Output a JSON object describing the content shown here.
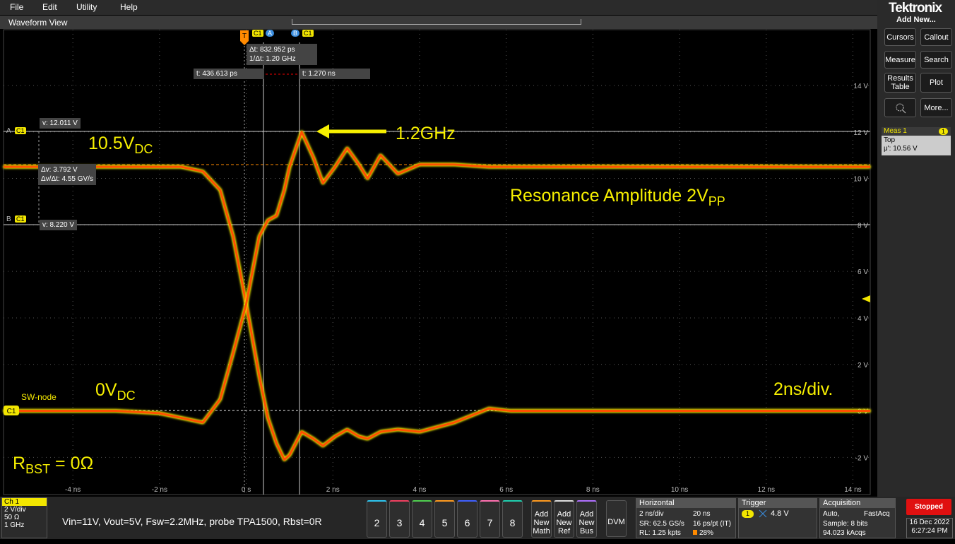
{
  "menu": [
    "File",
    "Edit",
    "Utility",
    "Help"
  ],
  "brand": "Tektronix",
  "view_title": "Waveform View",
  "right_panel": {
    "title": "Add New...",
    "buttons": [
      "Cursors",
      "Callout",
      "Measure",
      "Search",
      "Results Table",
      "Plot",
      "More..."
    ],
    "meas": {
      "name": "Meas 1",
      "badge": "1",
      "label": "Top",
      "value": "μ': 10.56 V"
    }
  },
  "cursors": {
    "channel": "C1",
    "a": "A",
    "b": "B",
    "trigger": "T",
    "a_v": "v: 12.011 V",
    "b_v": "v: 8.220 V",
    "dv": "Δv: 3.792 V",
    "dvdt": "Δv/Δt: 4.55 GV/s",
    "dt": "Δt: 832.952 ps",
    "inv_dt": "1/Δt: 1.20 GHz",
    "a_t": "t: 436.613 ps",
    "b_t": "t: 1.270 ns"
  },
  "chart_data": {
    "type": "line",
    "x": [
      -5.6,
      -3,
      -2,
      -1.5,
      -1,
      -0.6,
      -0.3,
      0,
      0.3,
      0.5,
      0.7,
      0.88,
      1.0,
      1.28,
      1.55,
      1.77,
      2.05,
      2.33,
      2.6,
      2.8,
      3.1,
      3.5,
      4,
      4.8,
      5.6,
      6.1,
      8,
      14.4
    ],
    "series": [
      {
        "color": "#ff5000",
        "values": [
          10.5,
          10.5,
          10.5,
          10.5,
          10.3,
          9.5,
          7.5,
          4.6,
          1.5,
          -0.3,
          -1.4,
          -2.1,
          -1.9,
          -0.9,
          -1.2,
          -1.5,
          -1.1,
          -0.8,
          -1.1,
          -1.2,
          -0.9,
          -0.8,
          -0.9,
          -0.5,
          0.1,
          0,
          0,
          0
        ]
      },
      {
        "color": "#ff5000",
        "values": [
          0,
          0,
          -0.1,
          -0.3,
          -0.5,
          0.5,
          2.5,
          4.6,
          7.5,
          8.2,
          8.4,
          9.5,
          10.5,
          12,
          10.9,
          9.8,
          10.5,
          11.3,
          10.6,
          10.0,
          11.0,
          10.2,
          10.6,
          10.6,
          10.5,
          10.5,
          10.5,
          10.5
        ]
      }
    ],
    "xlim": [
      -5.6,
      14.4
    ],
    "ylim": [
      -3.6,
      16.4
    ],
    "xticks": [
      {
        "value": -4,
        "label": "-4 ns"
      },
      {
        "value": -2,
        "label": "-2 ns"
      },
      {
        "value": 0,
        "label": "0 s"
      },
      {
        "value": 2,
        "label": "2 ns"
      },
      {
        "value": 4,
        "label": "4 ns"
      },
      {
        "value": 6,
        "label": "6 ns"
      },
      {
        "value": 8,
        "label": "8 ns"
      },
      {
        "value": 10,
        "label": "10 ns"
      },
      {
        "value": 12,
        "label": "12 ns"
      },
      {
        "value": 14,
        "label": "14 ns"
      }
    ],
    "yticks": [
      {
        "value": -2,
        "label": "-2 V"
      },
      {
        "value": 0,
        "label": "0 V"
      },
      {
        "value": 2,
        "label": "2 V"
      },
      {
        "value": 4,
        "label": "4 V"
      },
      {
        "value": 6,
        "label": "6 V"
      },
      {
        "value": 8,
        "label": "8 V"
      },
      {
        "value": 10,
        "label": "10 V"
      },
      {
        "value": 12,
        "label": "12 V"
      },
      {
        "value": 14,
        "label": "14 V"
      }
    ],
    "grid": true,
    "channel_label": "SW-node",
    "annotations": {
      "freq": "1.2GHz",
      "dc_high": {
        "main": "10.5V",
        "sub": "DC"
      },
      "resonance": {
        "main": "Resonance Amplitude 2V",
        "sub": "PP"
      },
      "dc_low": {
        "main": "0V",
        "sub": "DC"
      },
      "timebase": "2ns/div.",
      "rbst": {
        "main": "R",
        "sub": "BST",
        "tail": " = 0Ω"
      }
    }
  },
  "status_bar": {
    "ch1": {
      "title": "Ch 1",
      "lines": [
        "2 V/div",
        "50 Ω",
        "1 GHz"
      ]
    },
    "note": "Vin=11V, Vout=5V, Fsw=2.2MHz, probe TPA1500, Rbst=0R",
    "channels": [
      "2",
      "3",
      "4",
      "5",
      "6",
      "7",
      "8"
    ],
    "add_buttons": [
      "Add New Math",
      "Add New Ref",
      "Add New Bus"
    ],
    "dvm": "DVM",
    "horizontal": {
      "title": "Horizontal",
      "scale": "2 ns/div",
      "span": "20 ns",
      "sr": "SR: 62.5 GS/s",
      "res": "16 ps/pt (IT)",
      "rl": "RL: 1.25 kpts",
      "pos": "28%"
    },
    "trigger": {
      "title": "Trigger",
      "source": "1",
      "level": "4.8 V"
    },
    "acquisition": {
      "title": "Acquisition",
      "mode": "Auto,",
      "fast": "FastAcq",
      "sample": "Sample: 8 bits",
      "count": "94.023 kAcqs"
    },
    "run": "Stopped",
    "date": "16 Dec 2022",
    "time": "6:27:24 PM"
  }
}
